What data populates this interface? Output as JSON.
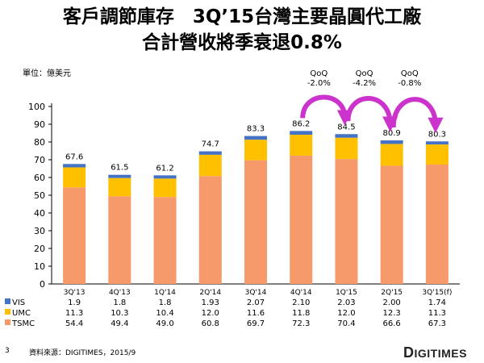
{
  "title_line1": "客戶調節庫存　3Q’15台灣主要晶圓代工廠",
  "title_line2": "合計營收將季衰退0.8%",
  "unit_label": "單位：億美元",
  "page_number": "3",
  "source": "資料來源：DIGITIMES，2015/9",
  "logo": {
    "initial": "D",
    "rest": "IGITIMES"
  },
  "colors": {
    "TSMC": "#f79a6b",
    "UMC": "#ffc000",
    "VIS": "#4472c4",
    "arrow": "#cc33cc"
  },
  "chart_data": {
    "type": "bar",
    "stacked": true,
    "categories": [
      "3Q'13",
      "4Q'13",
      "1Q'14",
      "2Q'14",
      "3Q'14",
      "4Q'14",
      "1Q'15",
      "2Q'15",
      "3Q'15(f)"
    ],
    "series": [
      {
        "name": "VIS",
        "values": [
          "1.9",
          "1.8",
          "1.8",
          "1.93",
          "2.07",
          "2.10",
          "2.03",
          "2.00",
          "1.74"
        ]
      },
      {
        "name": "UMC",
        "values": [
          "11.3",
          "10.3",
          "10.4",
          "12.0",
          "11.6",
          "11.8",
          "12.0",
          "12.3",
          "11.3"
        ]
      },
      {
        "name": "TSMC",
        "values": [
          "54.4",
          "49.4",
          "49.0",
          "60.8",
          "69.7",
          "72.3",
          "70.4",
          "66.6",
          "67.3"
        ]
      }
    ],
    "totals": [
      "67.6",
      "61.5",
      "61.2",
      "74.7",
      "83.3",
      "86.2",
      "84.5",
      "80.9",
      "80.3"
    ],
    "stack_order_bottom_to_top": [
      "TSMC",
      "UMC",
      "VIS"
    ],
    "table_row_order": [
      "VIS",
      "UMC",
      "TSMC"
    ],
    "ylim": [
      0,
      100
    ],
    "yticks": [
      "0",
      "10",
      "20",
      "30",
      "40",
      "50",
      "60",
      "70",
      "80",
      "90",
      "100"
    ],
    "annotations": [
      {
        "from": 5,
        "to": 6,
        "label_top": "QoQ",
        "label_bottom": "-2.0%"
      },
      {
        "from": 6,
        "to": 7,
        "label_top": "QoQ",
        "label_bottom": "-4.2%"
      },
      {
        "from": 7,
        "to": 8,
        "label_top": "QoQ",
        "label_bottom": "-0.8%"
      }
    ]
  }
}
